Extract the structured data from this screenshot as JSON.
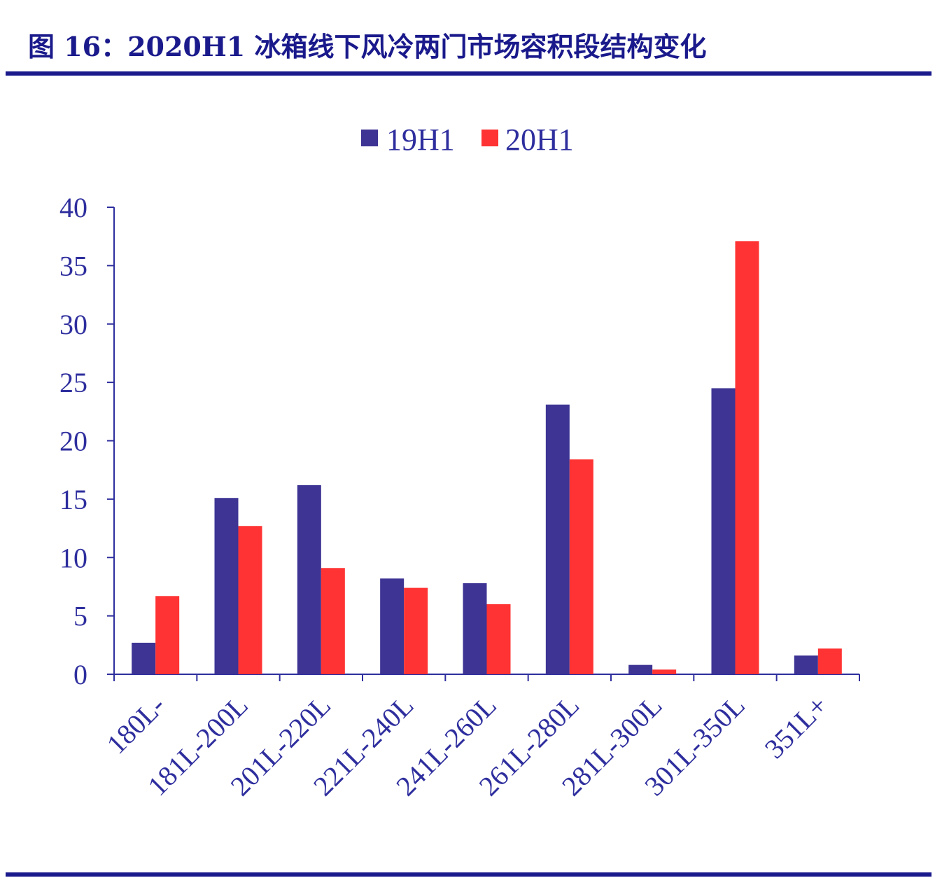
{
  "figure": {
    "title": "图 16：2020H1 冰箱线下风冷两门市场容积段结构变化"
  },
  "chart_data": {
    "type": "bar",
    "categories": [
      "180L-",
      "181L-200L",
      "201L-220L",
      "221L-240L",
      "241L-260L",
      "261L-280L",
      "281L-300L",
      "301L-350L",
      "351L+"
    ],
    "series": [
      {
        "name": "19H1",
        "color": "#3d3494",
        "values": [
          2.7,
          15.1,
          16.2,
          8.2,
          7.8,
          23.1,
          0.8,
          24.5,
          1.6
        ]
      },
      {
        "name": "20H1",
        "color": "#ff3333",
        "values": [
          6.7,
          12.7,
          9.1,
          7.4,
          6.0,
          18.4,
          0.4,
          37.1,
          2.2
        ]
      }
    ],
    "ylim": [
      0,
      40
    ],
    "yticks": [
      "0",
      "5",
      "10",
      "15",
      "20",
      "25",
      "30",
      "35",
      "40"
    ],
    "legend_position": "top-center",
    "grid": false
  }
}
